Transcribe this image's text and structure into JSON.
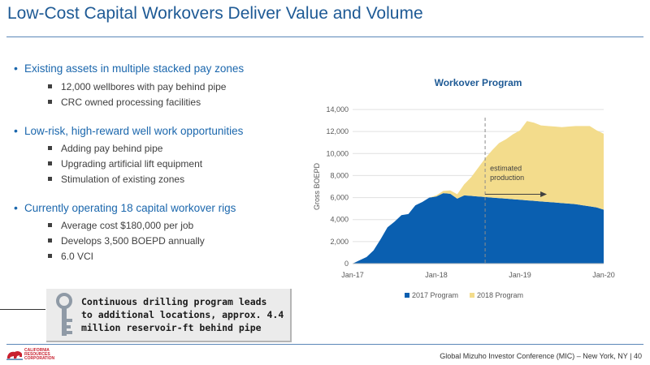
{
  "slide": {
    "title": "Low-Cost Capital Workovers Deliver Value and Volume"
  },
  "bullets": [
    {
      "text": "Existing assets in multiple stacked pay zones",
      "subs": [
        "12,000 wellbores with pay behind pipe",
        "CRC owned processing facilities"
      ]
    },
    {
      "text": "Low-risk, high-reward well work opportunities",
      "subs": [
        "Adding pay behind pipe",
        "Upgrading artificial lift equipment",
        "Stimulation of existing zones"
      ]
    },
    {
      "text": "Currently operating 18 capital workover rigs",
      "subs": [
        "Average cost $180,000 per job",
        "Develops 3,500 BOEPD annually",
        "6.0 VCI"
      ]
    }
  ],
  "callout": {
    "icon": "key-icon",
    "lines": [
      "Continuous drilling program leads",
      "to additional locations, approx. 4.4",
      "million reservoir-ft behind pipe"
    ]
  },
  "chart_data": {
    "type": "area",
    "stacked": true,
    "title": "Workover Program",
    "ylabel": "Gross BOEPD",
    "xlabel": "",
    "ylim": [
      0,
      14000
    ],
    "yticks": [
      "0",
      "2,000",
      "4,000",
      "6,000",
      "8,000",
      "10,000",
      "12,000",
      "14,000"
    ],
    "xticks": [
      {
        "label": "Jan-17",
        "month": 0
      },
      {
        "label": "Jan-18",
        "month": 12
      },
      {
        "label": "Jan-19",
        "month": 24
      },
      {
        "label": "Jan-20",
        "month": 36
      }
    ],
    "grid": true,
    "legend_position": "bottom",
    "series": [
      {
        "name": "2017 Program",
        "color": "#0a5fb0",
        "values": [
          0,
          300,
          600,
          1200,
          2200,
          3300,
          3800,
          4400,
          4500,
          5300,
          5600,
          6000,
          6100,
          6400,
          6350,
          5900,
          6200,
          6150,
          6100,
          6050,
          6000,
          5950,
          5900,
          5850,
          5800,
          5750,
          5700,
          5650,
          5600,
          5550,
          5500,
          5450,
          5400,
          5300,
          5200,
          5100,
          4900
        ]
      },
      {
        "name": "2018 Program",
        "color": "#f3dc8c",
        "values": [
          0,
          0,
          0,
          0,
          0,
          0,
          0,
          0,
          0,
          0,
          0,
          0,
          100,
          200,
          300,
          400,
          1000,
          1700,
          2600,
          3500,
          4300,
          5000,
          5400,
          5900,
          6300,
          7200,
          7100,
          6900,
          6900,
          6900,
          6900,
          7000,
          7100,
          7200,
          7300,
          7000,
          6900
        ]
      }
    ],
    "annotation": {
      "lines": [
        "estimated",
        "production"
      ],
      "start_month": 19
    }
  },
  "footer": {
    "text": "Global Mizuho Investor Conference (MIC) – New York, NY  |  40",
    "logo_lines": [
      "CALIFORNIA",
      "RESOURCES",
      "CORPORATION"
    ]
  }
}
